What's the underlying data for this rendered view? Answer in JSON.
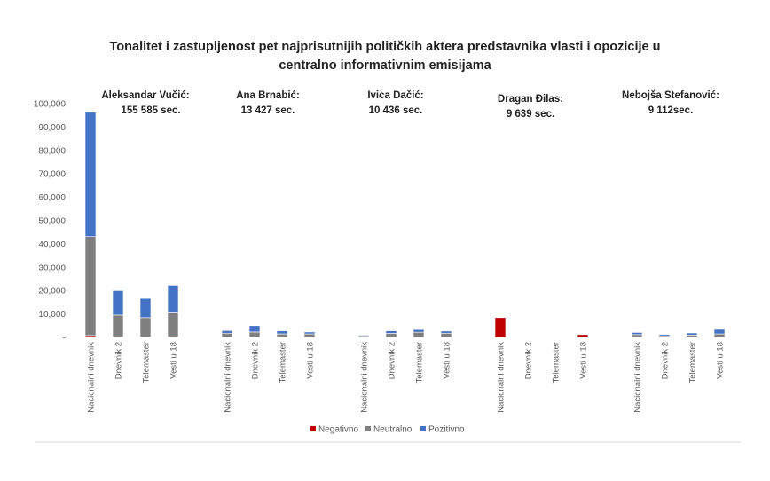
{
  "chart_data": {
    "type": "bar",
    "stacked": true,
    "title": "Tonalitet i zastupljenost pet najprisutnijih političkih aktera predstavnika vlasti i opozicije u centralno informativnim emisijama",
    "title_lines": [
      "Tonalitet i zastupljenost pet najprisutnijih političkih aktera predstavnika vlasti i opozicije u",
      "centralno informativnim emisijama"
    ],
    "xlabel": "",
    "ylabel": "",
    "ylim": [
      0,
      100000
    ],
    "yticks": [
      0,
      10000,
      20000,
      30000,
      40000,
      50000,
      60000,
      70000,
      80000,
      90000,
      100000
    ],
    "ytick_labels": [
      "-",
      "10,000",
      "20,000",
      "30,000",
      "40,000",
      "50,000",
      "60,000",
      "70,000",
      "80,000",
      "90,000",
      "100,000"
    ],
    "gridlines": false,
    "legend_position": "bottom",
    "colors": {
      "Negativno": "#c00000",
      "Neutralno": "#7f7f7f",
      "Pozitivno": "#4472c4"
    },
    "groups": [
      {
        "actor": "Aleksandar Vučić:",
        "total": "155 585 sec.",
        "categories": [
          "Nacionalni dnevnik",
          "Dnevnik 2",
          "Telemaster",
          "Vesti u 18"
        ],
        "series": [
          {
            "name": "Negativno",
            "values": [
              800,
              300,
              200,
              300
            ]
          },
          {
            "name": "Neutralno",
            "values": [
              42500,
              9200,
              8200,
              10500
            ]
          },
          {
            "name": "Pozitivno",
            "values": [
              53000,
              10800,
              8600,
              11400
            ]
          }
        ]
      },
      {
        "actor": "Ana Brnabić:",
        "total": "13 427 sec.",
        "categories": [
          "Nacionalni dnevnik",
          "Dnevnik 2",
          "Telemaster",
          "Vesti u 18"
        ],
        "series": [
          {
            "name": "Negativno",
            "values": [
              0,
              0,
              0,
              0
            ]
          },
          {
            "name": "Neutralno",
            "values": [
              1800,
              2300,
              1500,
              1500
            ]
          },
          {
            "name": "Pozitivno",
            "values": [
              1100,
              2700,
              1300,
              800
            ]
          }
        ]
      },
      {
        "actor": "Ivica Dačić:",
        "total": "10 436 sec.",
        "categories": [
          "Nacionalni dnevnik",
          "Dnevnik 2",
          "Telemaster",
          "Vesti u 18"
        ],
        "series": [
          {
            "name": "Negativno",
            "values": [
              0,
              0,
              0,
              0
            ]
          },
          {
            "name": "Neutralno",
            "values": [
              700,
              1700,
              2200,
              1800
            ]
          },
          {
            "name": "Pozitivno",
            "values": [
              300,
              1100,
              1500,
              900
            ]
          }
        ]
      },
      {
        "actor": "Dragan Đilas:",
        "total": "9 639 sec.",
        "categories": [
          "Nacionalni dnevnik",
          "Dnevnik 2",
          "Telemaster",
          "Vesti u 18"
        ],
        "series": [
          {
            "name": "Negativno",
            "values": [
              8400,
              0,
              0,
              1200
            ]
          },
          {
            "name": "Neutralno",
            "values": [
              0,
              0,
              0,
              0
            ]
          },
          {
            "name": "Pozitivno",
            "values": [
              0,
              0,
              0,
              0
            ]
          }
        ]
      },
      {
        "actor": "Nebojša Stefanović:",
        "total": "9 112sec.",
        "categories": [
          "Nacionalni dnevnik",
          "Dnevnik 2",
          "Telemaster",
          "Vesti u 18"
        ],
        "series": [
          {
            "name": "Negativno",
            "values": [
              0,
              0,
              0,
              0
            ]
          },
          {
            "name": "Neutralno",
            "values": [
              1200,
              700,
              1000,
              1500
            ]
          },
          {
            "name": "Pozitivno",
            "values": [
              900,
              600,
              900,
              2300
            ]
          }
        ]
      }
    ],
    "legend": [
      "Negativno",
      "Neutralno",
      "Pozitivno"
    ]
  }
}
